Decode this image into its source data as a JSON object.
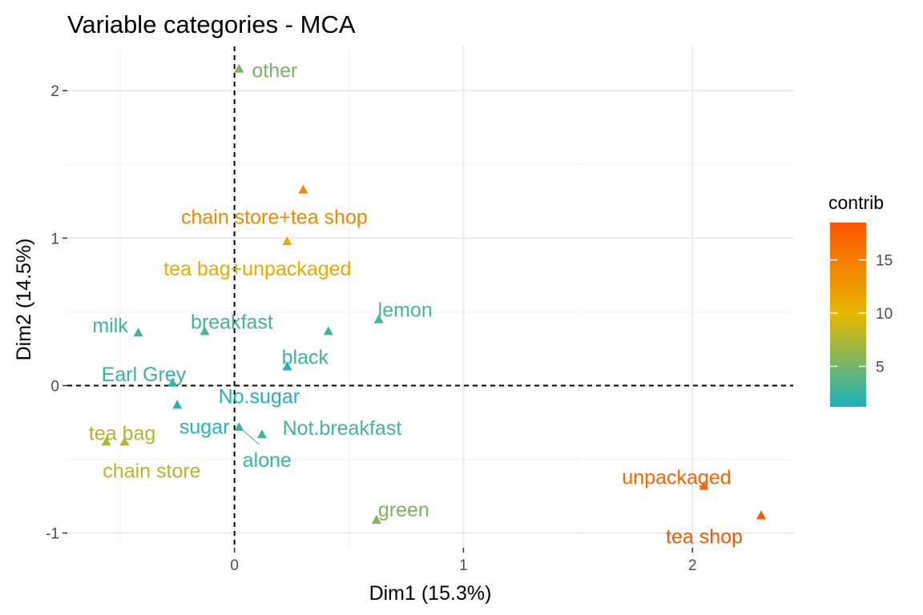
{
  "chart_data": {
    "type": "scatter",
    "title": "Variable categories - MCA",
    "xlabel": "Dim1 (15.3%)",
    "ylabel": "Dim2 (14.5%)",
    "xlim": [
      -0.73,
      2.44
    ],
    "ylim": [
      -1.1,
      2.3
    ],
    "x_ticks": [
      0,
      1,
      2
    ],
    "y_ticks": [
      -1,
      0,
      1,
      2
    ],
    "grid": true,
    "reference_lines": {
      "x": 0,
      "y": 0
    },
    "legend": {
      "title": "contrib",
      "position": "right",
      "range": [
        1.2,
        18.5
      ],
      "ticks": [
        5,
        10,
        15
      ],
      "gradient": [
        "#1bb3bf",
        "#e6b800",
        "#ff5500"
      ]
    },
    "points": [
      {
        "label": "other",
        "x": 0.02,
        "y": 2.15,
        "contrib": 5.2
      },
      {
        "label": "chain store+tea shop",
        "x": 0.3,
        "y": 1.33,
        "contrib": 14.0
      },
      {
        "label": "tea bag+unpackaged",
        "x": 0.23,
        "y": 0.98,
        "contrib": 11.0
      },
      {
        "label": "milk",
        "x": -0.42,
        "y": 0.36,
        "contrib": 2.8
      },
      {
        "label": "breakfast",
        "x": -0.13,
        "y": 0.37,
        "contrib": 2.9
      },
      {
        "label": "black",
        "x": 0.41,
        "y": 0.37,
        "contrib": 2.9
      },
      {
        "label": "lemon",
        "x": 0.63,
        "y": 0.45,
        "contrib": 3.0
      },
      {
        "label": "Earl Grey",
        "x": -0.27,
        "y": 0.02,
        "contrib": 2.4
      },
      {
        "label": "No.sugar",
        "x": 0.23,
        "y": 0.13,
        "contrib": 1.5
      },
      {
        "label": "sugar",
        "x": -0.25,
        "y": -0.13,
        "contrib": 1.6
      },
      {
        "label": "alone",
        "x": 0.02,
        "y": -0.28,
        "contrib": 2.6
      },
      {
        "label": "Not.breakfast",
        "x": 0.12,
        "y": -0.33,
        "contrib": 2.9
      },
      {
        "label": "tea bag",
        "x": -0.56,
        "y": -0.38,
        "contrib": 7.5
      },
      {
        "label": "chain store",
        "x": -0.48,
        "y": -0.38,
        "contrib": 7.8
      },
      {
        "label": "green",
        "x": 0.62,
        "y": -0.91,
        "contrib": 5.4
      },
      {
        "label": "unpackaged",
        "x": 2.05,
        "y": -0.68,
        "contrib": 17.2
      },
      {
        "label": "tea shop",
        "x": 2.3,
        "y": -0.88,
        "contrib": 18.5
      }
    ]
  }
}
